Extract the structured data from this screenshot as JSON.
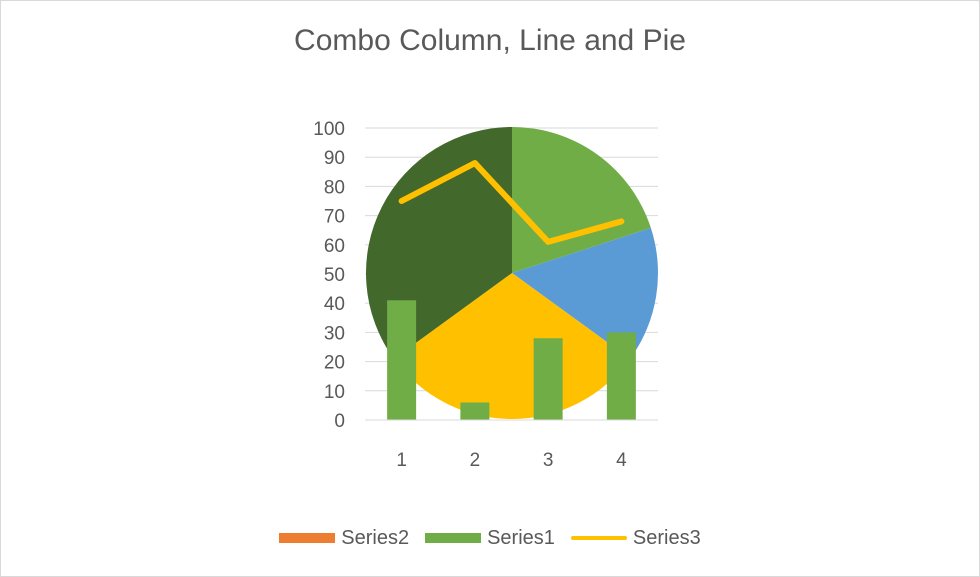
{
  "chart_data": {
    "title": "Combo Column, Line and Pie",
    "type": "bar",
    "categories": [
      "1",
      "2",
      "3",
      "4"
    ],
    "ylim": [
      0,
      100
    ],
    "yticks": [
      0,
      10,
      20,
      30,
      40,
      50,
      60,
      70,
      80,
      90,
      100
    ],
    "grid": true,
    "legend_position": "bottom",
    "series": [
      {
        "name": "Series2",
        "type": "pie",
        "color": "#ED7D31",
        "slices": [
          {
            "value": 20,
            "color": "#70AD47"
          },
          {
            "value": 15,
            "color": "#5B9BD5"
          },
          {
            "value": 30,
            "color": "#FFC000"
          },
          {
            "value": 35,
            "color": "#43682B"
          }
        ]
      },
      {
        "name": "Series1",
        "type": "bar",
        "color": "#70AD47",
        "values": [
          41,
          6,
          28,
          30
        ]
      },
      {
        "name": "Series3",
        "type": "line",
        "color": "#FFC000",
        "values": [
          75,
          88,
          61,
          68
        ]
      }
    ]
  }
}
